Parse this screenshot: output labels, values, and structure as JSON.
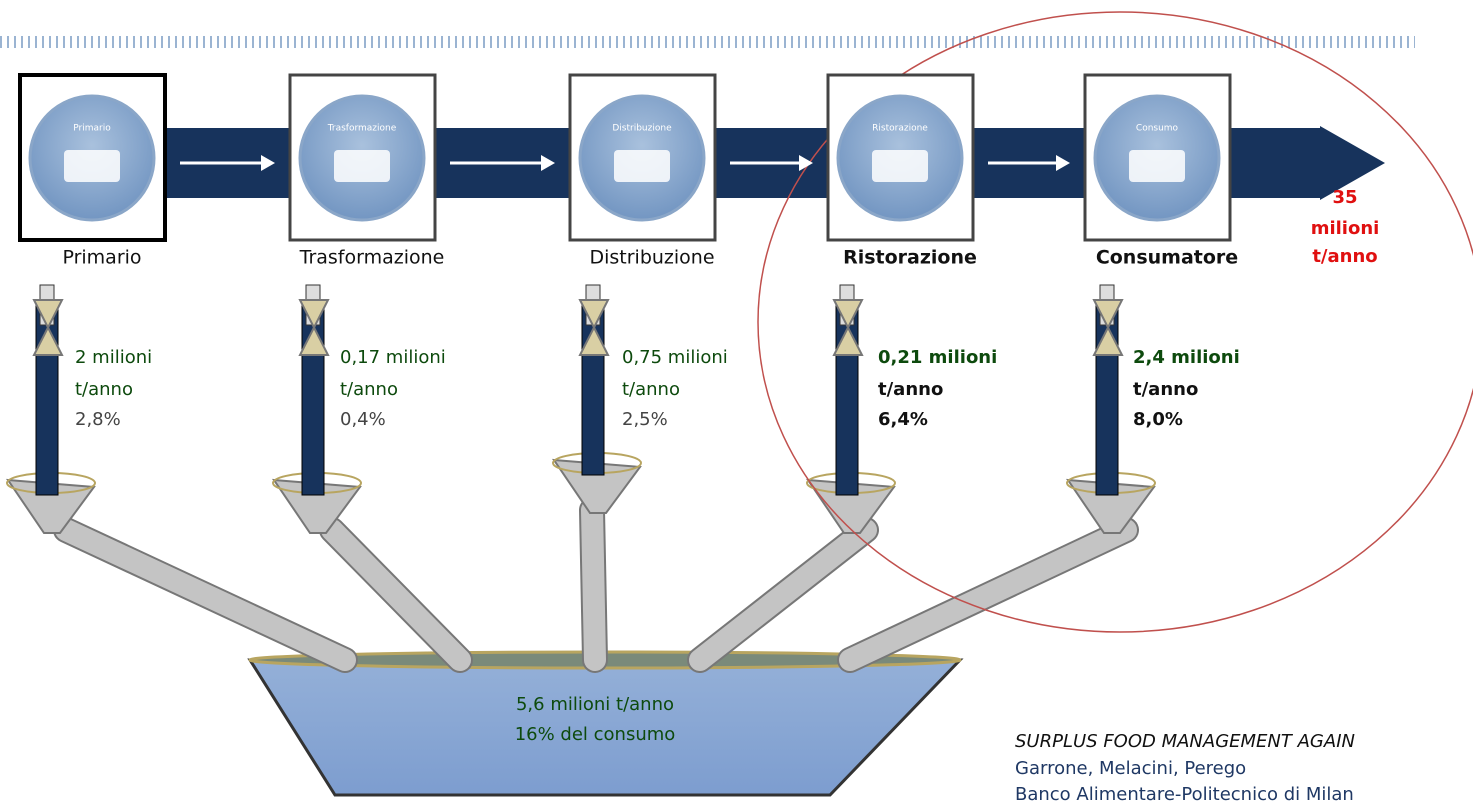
{
  "stages": [
    {
      "label": "Primario",
      "icon_label": "Primario",
      "waste_amount": "2 milioni",
      "waste_unit": "t/anno",
      "waste_share": "2,8%"
    },
    {
      "label": "Trasformazione",
      "icon_label": "Trasformazione",
      "waste_amount": "0,17 milioni",
      "waste_unit": "t/anno",
      "waste_share": "0,4%"
    },
    {
      "label": "Distribuzione",
      "icon_label": "Distribuzione",
      "waste_amount": "0,75 milioni",
      "waste_unit": "t/anno",
      "waste_share": "2,5%"
    },
    {
      "label": "Ristorazione",
      "icon_label": "Ristorazione",
      "waste_amount": "0,21 milioni",
      "waste_unit": "t/anno",
      "waste_share": "6,4%"
    },
    {
      "label": "Consumatore",
      "icon_label": "Consumo",
      "waste_amount": "2,4 milioni",
      "waste_unit": "t/anno",
      "waste_share": "8,0%"
    }
  ],
  "total": {
    "lines": [
      "35",
      "milioni",
      "t/anno"
    ]
  },
  "basin": {
    "amount": "5,6 milioni t/anno",
    "share": "16% del consumo"
  },
  "source": {
    "title": "SURPLUS FOOD MANAGEMENT AGAIN",
    "authors": "Garrone, Melacini, Perego",
    "publisher": "Banco Alimentare-Politecnico di Milan"
  }
}
